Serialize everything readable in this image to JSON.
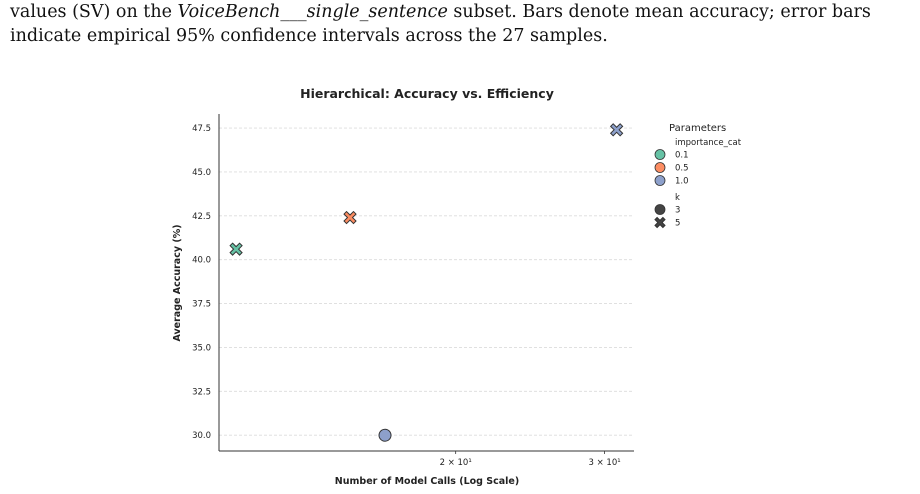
{
  "caption": {
    "line1_pre": "values (SV) on the ",
    "line1_italic": "VoiceBench___single_sentence",
    "line1_post": " subset. Bars denote mean accuracy; error bars",
    "line2": "indicate empirical 95% confidence intervals across the 27 samples."
  },
  "chart_data": {
    "type": "scatter",
    "title": "Hierarchical: Accuracy vs. Efficiency",
    "xlabel": "Number of Model Calls (Log Scale)",
    "ylabel": "Average Accuracy (%)",
    "x_scale": "log",
    "xlim": [
      10.5,
      32.5
    ],
    "ylim": [
      29.1,
      48.3
    ],
    "x_ticks": [
      {
        "value": 20,
        "label": "2 × 10¹"
      },
      {
        "value": 30,
        "label": "3 × 10¹"
      }
    ],
    "y_ticks": [
      30.0,
      32.5,
      35.0,
      37.5,
      40.0,
      42.5,
      45.0,
      47.5
    ],
    "y_tick_labels": [
      "30.0",
      "32.5",
      "35.0",
      "37.5",
      "40.0",
      "42.5",
      "45.0",
      "47.5"
    ],
    "grid": "horizontal dashed",
    "legend": {
      "placement": "right",
      "title": "Parameters",
      "hue_title": "importance_cat",
      "hue_entries": [
        {
          "label": "0.1",
          "color": "#66c2a5"
        },
        {
          "label": "0.5",
          "color": "#fc8d62"
        },
        {
          "label": "1.0",
          "color": "#8da0cb"
        }
      ],
      "style_title": "k",
      "style_entries": [
        {
          "label": "3",
          "marker": "circle"
        },
        {
          "label": "5",
          "marker": "x"
        }
      ]
    },
    "points": [
      {
        "x": 11,
        "y": 40.6,
        "importance_cat": "0.1",
        "k": "5"
      },
      {
        "x": 15,
        "y": 42.4,
        "importance_cat": "0.5",
        "k": "5"
      },
      {
        "x": 16.5,
        "y": 30.0,
        "importance_cat": "1.0",
        "k": "3"
      },
      {
        "x": 31,
        "y": 47.4,
        "importance_cat": "1.0",
        "k": "5"
      }
    ]
  }
}
